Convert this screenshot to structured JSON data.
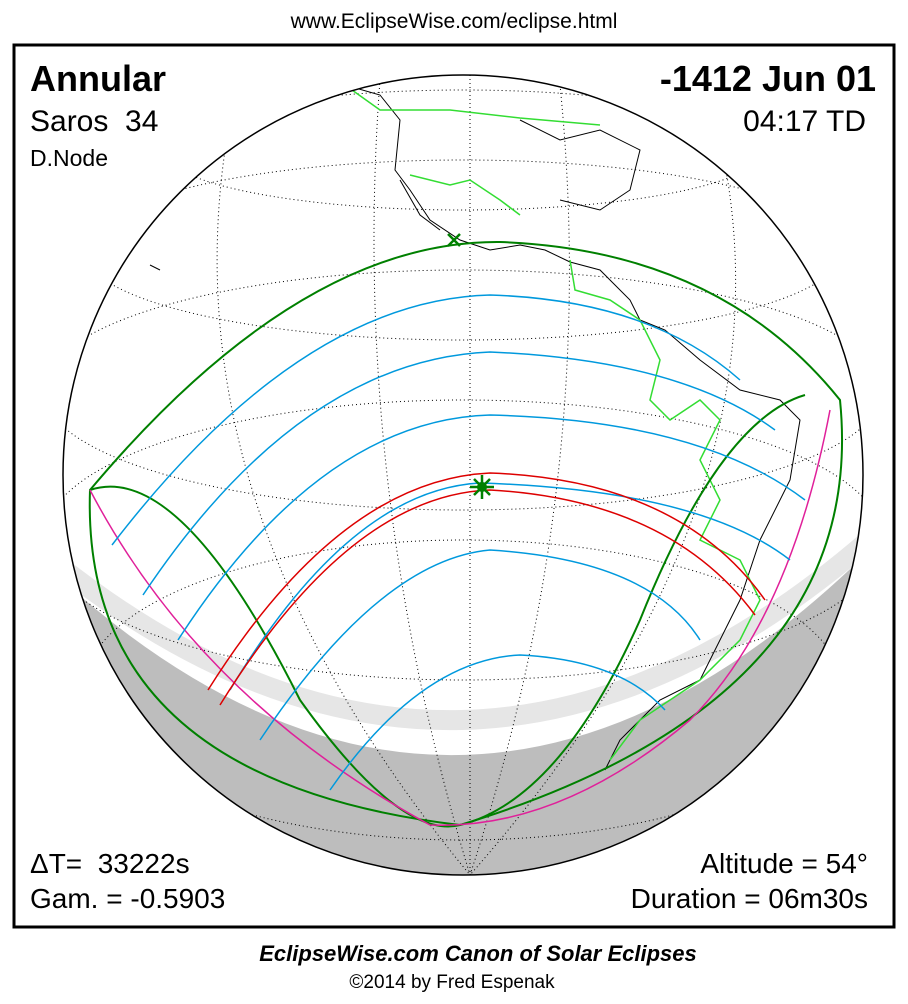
{
  "header": {
    "url": "www.EclipseWise.com/eclipse.html"
  },
  "eclipse": {
    "type": "Annular",
    "saros": "Saros  34",
    "node": "D.Node",
    "date": "-1412 Jun 01",
    "time": "04:17 TD",
    "delta_t": "ΔT=  33222s",
    "gamma": "Gam. = -0.5903",
    "altitude": "Altitude = 54°",
    "duration": "Duration = 06m30s"
  },
  "footer": {
    "title": "EclipseWise.com Canon of Solar Eclipses",
    "credit": "©2014 by Fred Espenak"
  }
}
